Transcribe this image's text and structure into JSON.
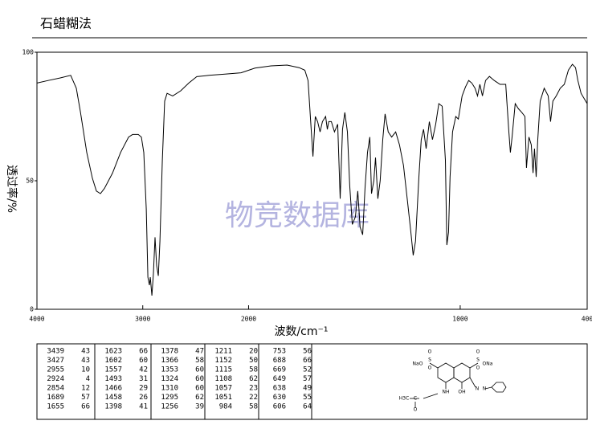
{
  "chart_data": {
    "type": "line",
    "title": "石蜡糊法",
    "ylabel": "透过率/%",
    "xlabel": "波数/cm⁻¹",
    "watermark": "物竞数据库",
    "xlim": [
      4000,
      400
    ],
    "xticks": [
      4000,
      3000,
      2000,
      1000,
      400
    ],
    "x_scale": {
      "break": 2000,
      "compression": 0.5
    },
    "ylim": [
      0,
      100
    ],
    "yticks": [
      0,
      50,
      100
    ],
    "color": "#000000",
    "x": [
      4000,
      3894,
      3780,
      3681,
      3628,
      3590,
      3529,
      3476,
      3438,
      3400,
      3362,
      3286,
      3210,
      3134,
      3096,
      3043,
      3013,
      2990,
      2967,
      2952,
      2937,
      2929,
      2914,
      2899,
      2884,
      2869,
      2853,
      2838,
      2815,
      2793,
      2770,
      2717,
      2641,
      2565,
      2489,
      2375,
      2223,
      2071,
      1970,
      1894,
      1818,
      1761,
      1734,
      1719,
      1704,
      1696,
      1685,
      1674,
      1662,
      1651,
      1636,
      1628,
      1621,
      1609,
      1594,
      1579,
      1567,
      1556,
      1545,
      1533,
      1522,
      1510,
      1495,
      1484,
      1473,
      1461,
      1450,
      1438,
      1427,
      1419,
      1408,
      1400,
      1389,
      1378,
      1366,
      1355,
      1340,
      1324,
      1305,
      1287,
      1268,
      1249,
      1233,
      1222,
      1211,
      1195,
      1184,
      1173,
      1161,
      1146,
      1131,
      1116,
      1101,
      1085,
      1070,
      1063,
      1055,
      1048,
      1036,
      1021,
      1009,
      991,
      975,
      960,
      945,
      930,
      918,
      907,
      895,
      880,
      862,
      839,
      812,
      785,
      770,
      763,
      755,
      740,
      725,
      709,
      694,
      687,
      675,
      664,
      656,
      649,
      641,
      634,
      622,
      603,
      584,
      573,
      562,
      546,
      527,
      508,
      489,
      470,
      455,
      444,
      429,
      400
    ],
    "values": [
      88,
      89,
      90,
      91,
      86,
      77,
      61,
      51,
      46,
      45,
      47,
      53,
      61,
      67,
      68,
      68,
      67,
      61,
      39,
      12.5,
      9.4,
      12.5,
      5.3,
      14,
      28,
      17,
      13,
      26.5,
      58,
      81,
      84,
      83,
      85,
      88,
      90.5,
      91,
      91.5,
      92,
      93.8,
      94.7,
      95,
      94,
      93,
      89,
      70,
      59.4,
      75,
      73,
      69,
      73,
      75,
      70,
      73,
      73,
      69,
      72,
      43,
      70,
      76.6,
      69,
      48,
      33,
      36,
      46,
      32,
      29,
      47,
      61,
      67,
      45,
      50,
      59,
      43,
      50,
      66,
      76,
      69,
      67,
      69,
      64,
      56,
      42,
      30,
      21,
      26.5,
      51.5,
      66,
      70,
      62.5,
      73,
      66,
      72,
      80,
      79,
      58,
      25,
      30,
      51.5,
      69,
      75,
      74,
      83,
      86.5,
      89,
      88,
      86,
      83,
      87.5,
      83,
      89,
      90.6,
      89,
      87.5,
      87.5,
      69,
      61,
      67,
      80,
      78,
      76.6,
      75,
      55,
      67,
      64,
      53,
      62.5,
      51.5,
      65.6,
      81,
      86,
      83,
      73,
      81,
      83,
      86,
      87.5,
      93,
      95.3,
      94,
      89,
      84,
      80
    ]
  },
  "peak_table": {
    "rows": [
      [
        3439,
        43,
        1623,
        66,
        1378,
        47,
        1211,
        20,
        753,
        56
      ],
      [
        3427,
        43,
        1602,
        60,
        1366,
        58,
        1152,
        50,
        688,
        66
      ],
      [
        2955,
        10,
        1557,
        42,
        1353,
        60,
        1115,
        58,
        669,
        52
      ],
      [
        2924,
        4,
        1493,
        31,
        1324,
        60,
        1108,
        62,
        649,
        57
      ],
      [
        2854,
        12,
        1466,
        29,
        1310,
        60,
        1057,
        23,
        638,
        49
      ],
      [
        1689,
        57,
        1458,
        26,
        1295,
        62,
        1051,
        22,
        630,
        55
      ],
      [
        1655,
        66,
        1398,
        41,
        1256,
        39,
        984,
        58,
        606,
        64
      ]
    ]
  },
  "structure": {
    "labels": [
      "NaO",
      "S",
      "O",
      "O",
      "S",
      "ONa",
      "O",
      "O",
      "NH",
      "OH",
      "N",
      "N",
      "H3C",
      "C",
      "O"
    ]
  }
}
